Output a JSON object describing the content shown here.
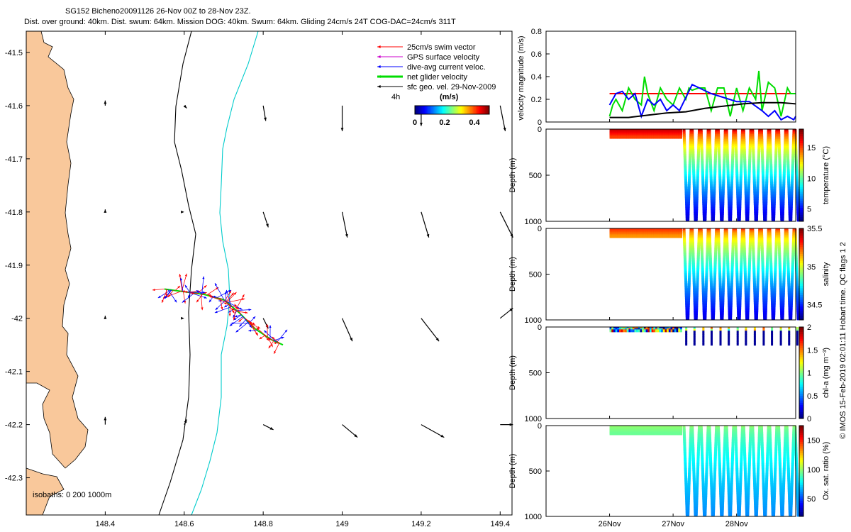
{
  "header": {
    "line1": "SG152 Bicheno20091126 26-Nov 00Z to 28-Nov 23Z.",
    "line2": "Dist. over ground: 40km. Dist. swum: 64km. Mission DOG: 40km. Swum: 64km. Gliding 24cm/s 24T COG-DAC=24cm/s 311T"
  },
  "footer": {
    "stamp": "© IMOS 15-Feb-2019 02:01:11 Hobart time. QC flags 1 2"
  },
  "colors": {
    "land": "#f9c89b",
    "swim": "#ff0000",
    "gps": "#cc00cc",
    "dac": "#0000ff",
    "net": "#00dd00",
    "geo": "#000000",
    "isobath200": "#000000",
    "isobath1000": "#00cccc"
  },
  "chart_data": [
    {
      "type": "map",
      "xticks": [
        "148.4",
        "148.6",
        "148.8",
        "149",
        "149.2",
        "149.4"
      ],
      "xtick_values": [
        148.4,
        148.6,
        148.8,
        149.0,
        149.2,
        149.4
      ],
      "xlim": [
        148.2,
        149.43
      ],
      "yticks": [
        "-41.5",
        "-41.6",
        "-41.7",
        "-41.8",
        "-41.9",
        "-42",
        "-42.1",
        "-42.2",
        "-42.3"
      ],
      "ytick_values": [
        -41.5,
        -41.6,
        -41.7,
        -41.8,
        -41.9,
        -42.0,
        -42.1,
        -42.2,
        -42.3
      ],
      "ylim": [
        -42.37,
        -41.46
      ],
      "legend": [
        {
          "label": "25cm/s swim vector",
          "color": "#ff0000"
        },
        {
          "label": "GPS surface velocity",
          "color": "#cc00cc"
        },
        {
          "label": "dive-avg current veloc.",
          "color": "#0000ff"
        },
        {
          "label": "net glider velocity",
          "color": "#00dd00"
        },
        {
          "label": "sfc geo. vel. 29-Nov-2009",
          "color": "#000000"
        }
      ],
      "scale_label": "4h",
      "colorbar": {
        "title": "(m/s)",
        "ticks": [
          "0",
          "0.2",
          "0.4"
        ],
        "tick_values": [
          0,
          0.2,
          0.4
        ],
        "range": [
          0,
          0.5
        ]
      },
      "isobaths_label": "isobaths: 0  200  1000m",
      "track": [
        [
          148.55,
          -41.945
        ],
        [
          148.6,
          -41.95
        ],
        [
          148.65,
          -41.955
        ],
        [
          148.7,
          -41.965
        ],
        [
          148.74,
          -41.99
        ],
        [
          148.78,
          -42.02
        ],
        [
          148.82,
          -42.04
        ],
        [
          148.85,
          -42.05
        ]
      ],
      "geo_vectors": [
        {
          "lon": 148.4,
          "lat": -41.6,
          "u": 0.0,
          "v": 0.02
        },
        {
          "lon": 148.6,
          "lat": -41.6,
          "u": 0.01,
          "v": -0.01
        },
        {
          "lon": 148.8,
          "lat": -41.6,
          "u": 0.01,
          "v": -0.06
        },
        {
          "lon": 149.0,
          "lat": -41.6,
          "u": 0.0,
          "v": -0.1
        },
        {
          "lon": 149.2,
          "lat": -41.6,
          "u": 0.0,
          "v": -0.08
        },
        {
          "lon": 149.4,
          "lat": -41.6,
          "u": 0.02,
          "v": -0.1
        },
        {
          "lon": 148.4,
          "lat": -41.8,
          "u": 0.0,
          "v": 0.01
        },
        {
          "lon": 148.6,
          "lat": -41.8,
          "u": 0.0,
          "v": 0.0
        },
        {
          "lon": 148.8,
          "lat": -41.8,
          "u": 0.02,
          "v": -0.06
        },
        {
          "lon": 149.0,
          "lat": -41.8,
          "u": 0.02,
          "v": -0.1
        },
        {
          "lon": 149.2,
          "lat": -41.8,
          "u": 0.03,
          "v": -0.1
        },
        {
          "lon": 149.4,
          "lat": -41.8,
          "u": 0.05,
          "v": -0.1
        },
        {
          "lon": 148.4,
          "lat": -42.0,
          "u": 0.0,
          "v": 0.01
        },
        {
          "lon": 148.6,
          "lat": -42.0,
          "u": 0.0,
          "v": 0.0
        },
        {
          "lon": 148.8,
          "lat": -42.0,
          "u": 0.02,
          "v": -0.04
        },
        {
          "lon": 149.0,
          "lat": -42.0,
          "u": 0.04,
          "v": -0.09
        },
        {
          "lon": 149.2,
          "lat": -42.0,
          "u": 0.07,
          "v": -0.09
        },
        {
          "lon": 149.4,
          "lat": -42.0,
          "u": 0.05,
          "v": 0.04
        },
        {
          "lon": 148.4,
          "lat": -42.2,
          "u": 0.0,
          "v": 0.03
        },
        {
          "lon": 148.6,
          "lat": -42.2,
          "u": 0.01,
          "v": 0.02
        },
        {
          "lon": 148.8,
          "lat": -42.2,
          "u": 0.04,
          "v": -0.02
        },
        {
          "lon": 149.0,
          "lat": -42.2,
          "u": 0.06,
          "v": -0.05
        },
        {
          "lon": 149.2,
          "lat": -42.2,
          "u": 0.09,
          "v": -0.05
        },
        {
          "lon": 149.4,
          "lat": -42.2,
          "u": 0.05,
          "v": 0.0
        }
      ]
    },
    {
      "type": "line",
      "ylabel": "velocity magnitude (m/s)",
      "ylim": [
        0,
        0.8
      ],
      "yticks": [
        "0",
        "0.2",
        "0.4",
        "0.6",
        "0.8"
      ],
      "ytick_values": [
        0,
        0.2,
        0.4,
        0.6,
        0.8
      ],
      "xlim": [
        25.0,
        28.93
      ],
      "series": [
        {
          "color": "#ff0000",
          "x": [
            26.0,
            26.1,
            26.3,
            26.5,
            27.0,
            27.3,
            27.6,
            28.0,
            28.4,
            28.93
          ],
          "y": [
            0.25,
            0.25,
            0.25,
            0.25,
            0.25,
            0.25,
            0.25,
            0.25,
            0.25,
            0.25
          ]
        },
        {
          "color": "#00dd00",
          "x": [
            26.0,
            26.05,
            26.1,
            26.2,
            26.3,
            26.4,
            26.5,
            26.55,
            26.6,
            26.7,
            26.8,
            26.9,
            27.0,
            27.1,
            27.2,
            27.25,
            27.3,
            27.4,
            27.5,
            27.6,
            27.7,
            27.8,
            27.9,
            28.0,
            28.1,
            28.2,
            28.3,
            28.35,
            28.4,
            28.5,
            28.6,
            28.7,
            28.8,
            28.85,
            28.93
          ],
          "y": [
            0.05,
            0.15,
            0.2,
            0.1,
            0.3,
            0.2,
            0.15,
            0.4,
            0.25,
            0.1,
            0.3,
            0.2,
            0.15,
            0.3,
            0.2,
            0.3,
            0.28,
            0.3,
            0.3,
            0.1,
            0.3,
            0.3,
            0.05,
            0.3,
            0.1,
            0.3,
            0.2,
            0.45,
            0.1,
            0.35,
            0.3,
            0.05,
            0.3,
            0.25,
            0.25
          ]
        },
        {
          "color": "#0000ff",
          "x": [
            26.0,
            26.1,
            26.2,
            26.3,
            26.4,
            26.5,
            26.6,
            26.7,
            26.8,
            26.9,
            27.0,
            27.1,
            27.3,
            27.6,
            28.0,
            28.2,
            28.4,
            28.5,
            28.6,
            28.7,
            28.8,
            28.9,
            28.93
          ],
          "y": [
            0.15,
            0.25,
            0.27,
            0.2,
            0.25,
            0.05,
            0.2,
            0.15,
            0.2,
            0.1,
            0.15,
            0.1,
            0.33,
            0.25,
            0.18,
            0.18,
            0.1,
            0.05,
            0.1,
            0.02,
            0.05,
            0.02,
            0.05
          ]
        },
        {
          "color": "#000000",
          "x": [
            26.0,
            26.3,
            26.6,
            26.9,
            27.2,
            27.5,
            27.8,
            28.1,
            28.4,
            28.7,
            28.93
          ],
          "y": [
            0.04,
            0.04,
            0.06,
            0.08,
            0.09,
            0.12,
            0.14,
            0.16,
            0.17,
            0.17,
            0.16
          ]
        }
      ]
    },
    {
      "type": "heatmap",
      "variable": "temperature",
      "ylabel": "Depth (m)",
      "yticks": [
        "0",
        "500",
        "1000"
      ],
      "ytick_values": [
        0,
        500,
        1000
      ],
      "ylim": [
        0,
        1000
      ],
      "colorbar_label": "temperature (°C)",
      "cticks": [
        "5",
        "10",
        "15"
      ],
      "ctick_values": [
        5,
        10,
        15
      ],
      "crange": [
        3,
        18
      ],
      "surface_value": 17,
      "deep_value": 4
    },
    {
      "type": "heatmap",
      "variable": "salinity",
      "ylabel": "Depth (m)",
      "yticks": [
        "0",
        "500",
        "1000"
      ],
      "ytick_values": [
        0,
        500,
        1000
      ],
      "ylim": [
        0,
        1000
      ],
      "colorbar_label": "salinity",
      "cticks": [
        "34.5",
        "35",
        "35.5"
      ],
      "ctick_values": [
        34.5,
        35.0,
        35.5
      ],
      "crange": [
        34.3,
        35.5
      ],
      "surface_value": 35.3,
      "deep_value": 34.4
    },
    {
      "type": "heatmap",
      "variable": "chl-a",
      "ylabel": "Depth (m)",
      "yticks": [
        "0",
        "500",
        "1000"
      ],
      "ytick_values": [
        0,
        500,
        1000
      ],
      "ylim": [
        0,
        1000
      ],
      "colorbar_label": "chl-a (mg m⁻³)",
      "cticks": [
        "0",
        "0.5",
        "1",
        "1.5",
        "2"
      ],
      "ctick_values": [
        0,
        0.5,
        1.0,
        1.5,
        2.0
      ],
      "crange": [
        0,
        2
      ],
      "surface_value": 1.2,
      "deep_value": 0.05
    },
    {
      "type": "heatmap",
      "variable": "oxygen",
      "ylabel": "Depth (m)",
      "yticks": [
        "0",
        "500",
        "1000"
      ],
      "ytick_values": [
        0,
        500,
        1000
      ],
      "ylim": [
        0,
        1000
      ],
      "colorbar_label": "Ox. sat. ratio (%)",
      "cticks": [
        "50",
        "100",
        "150"
      ],
      "ctick_values": [
        50,
        100,
        150
      ],
      "crange": [
        20,
        175
      ],
      "surface_value": 100,
      "deep_value": 60
    },
    {
      "type": "axis",
      "xticks": [
        "26Nov",
        "27Nov",
        "28Nov"
      ],
      "xtick_values": [
        26,
        27,
        28
      ]
    }
  ]
}
